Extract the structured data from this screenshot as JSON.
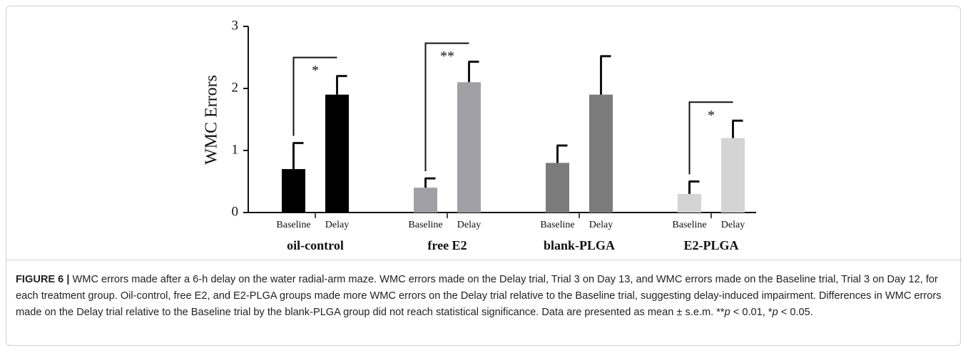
{
  "chart_data": {
    "type": "grouped-bar-error",
    "y_label": "WMC Errors",
    "ylim": [
      0,
      3
    ],
    "yticks": [
      0,
      1,
      2,
      3
    ],
    "groups": [
      {
        "name": "oil-control",
        "color": "#000000",
        "labels": [
          "Baseline",
          "Delay"
        ],
        "values": [
          0.7,
          1.9
        ],
        "errors": [
          0.42,
          0.3
        ],
        "significance": "*"
      },
      {
        "name": "free E2",
        "color": "#a0a0a6",
        "labels": [
          "Baseline",
          "Delay"
        ],
        "values": [
          0.4,
          2.1
        ],
        "errors": [
          0.15,
          0.33
        ],
        "significance": "**"
      },
      {
        "name": "blank-PLGA",
        "color": "#7b7b7b",
        "labels": [
          "Baseline",
          "Delay"
        ],
        "values": [
          0.8,
          1.9
        ],
        "errors": [
          0.28,
          0.62
        ]
      },
      {
        "name": "E2-PLGA",
        "color": "#d4d4d4",
        "labels": [
          "Baseline",
          "Delay"
        ],
        "values": [
          0.3,
          1.2
        ],
        "errors": [
          0.2,
          0.28
        ],
        "significance": "*"
      }
    ]
  },
  "caption": {
    "label": "FIGURE 6 |",
    "segments": [
      {
        "text": " WMC errors made after a 6-h delay on the water radial-arm maze. WMC errors made on the Delay trial, Trial 3 on Day 13, and WMC errors made on the Baseline trial, Trial 3 on Day 12, for each treatment group. Oil-control, free E2, and E2-PLGA groups made more WMC errors on the Delay trial relative to the Baseline trial, suggesting delay-induced impairment. Differences in WMC errors made on the Delay trial relative to the Baseline trial by the blank-PLGA group did not reach statistical significance. Data are presented as mean ± s.e.m. **"
      },
      {
        "text": "p",
        "italic": true
      },
      {
        "text": " < 0.01, *"
      },
      {
        "text": "p",
        "italic": true
      },
      {
        "text": " < 0.05."
      }
    ]
  }
}
